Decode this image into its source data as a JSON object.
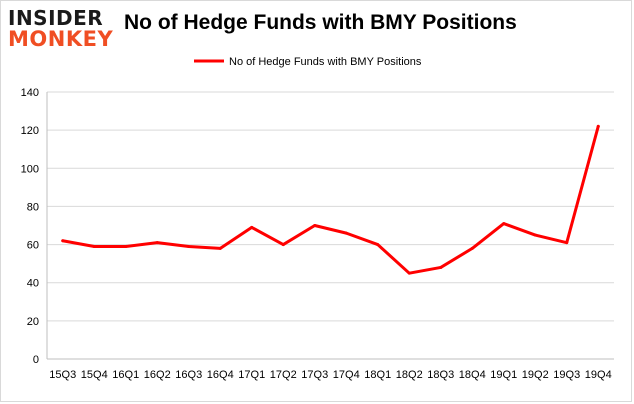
{
  "logo": {
    "line1": "INSIDER",
    "line2": "MONKEY"
  },
  "chart_data": {
    "type": "line",
    "title": "No of Hedge Funds with BMY Positions",
    "xlabel": "",
    "ylabel": "",
    "categories": [
      "15Q3",
      "15Q4",
      "16Q1",
      "16Q2",
      "16Q3",
      "16Q4",
      "17Q1",
      "17Q2",
      "17Q3",
      "17Q4",
      "18Q1",
      "18Q2",
      "18Q3",
      "18Q4",
      "19Q1",
      "19Q2",
      "19Q3",
      "19Q4"
    ],
    "series": [
      {
        "name": "No of Hedge Funds with BMY Positions",
        "color": "#ff0000",
        "values": [
          62,
          59,
          59,
          61,
          59,
          58,
          69,
          60,
          70,
          66,
          60,
          45,
          48,
          58,
          71,
          65,
          61,
          122
        ]
      }
    ],
    "ylim": [
      0,
      140
    ],
    "yticks": [
      0,
      20,
      40,
      60,
      80,
      100,
      120,
      140
    ],
    "grid": true,
    "legend_position": "top-center"
  }
}
